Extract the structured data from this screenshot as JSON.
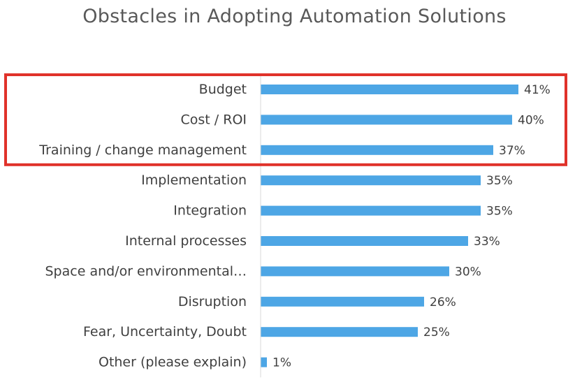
{
  "chart_data": {
    "type": "bar",
    "orientation": "horizontal",
    "title": "Obstacles in Adopting Automation Solutions",
    "xlabel": "",
    "ylabel": "",
    "xlim": [
      0,
      45
    ],
    "grid": false,
    "legend": "none",
    "value_suffix": "%",
    "bar_color": "#4DA6E5",
    "highlight_color": "#E0322A",
    "highlighted_categories": [
      "Budget",
      "Cost / ROI",
      "Training / change management"
    ],
    "categories": [
      "Budget",
      "Cost / ROI",
      "Training / change management",
      "Implementation",
      "Integration",
      "Internal processes",
      "Space and/or environmental…",
      "Disruption",
      "Fear, Uncertainty, Doubt",
      "Other (please explain)"
    ],
    "values": [
      41,
      40,
      37,
      35,
      35,
      33,
      30,
      26,
      25,
      1
    ]
  }
}
